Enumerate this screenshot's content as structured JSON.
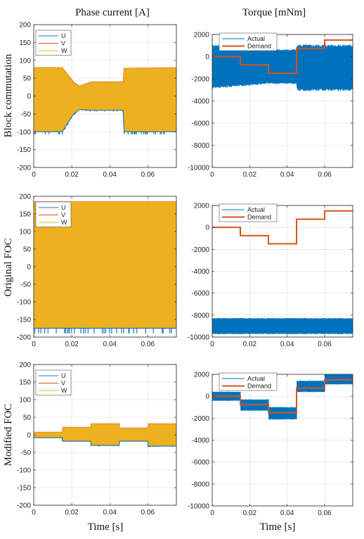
{
  "headers": {
    "left": "Phase current [A]",
    "right": "Torque [mNm]"
  },
  "row_labels": [
    "Block commutation",
    "Original FOC",
    "Modified FOC"
  ],
  "xlabel": "Time [s]",
  "colors": {
    "U": "#1f77b4",
    "V": "#d95319",
    "W": "#edb120",
    "actual": "#0072bd",
    "demand": "#d95319"
  },
  "chart_data": [
    {
      "type": "line",
      "row": 0,
      "column": "left",
      "xlim": [
        0,
        0.075
      ],
      "ylim": [
        -200,
        200
      ],
      "xticks": [
        0,
        0.02,
        0.04,
        0.06
      ],
      "xtick_labels": [
        "0",
        "0.02",
        "0.04",
        "0.06"
      ],
      "yticks": [
        200,
        150,
        100,
        50,
        0,
        -50,
        -100,
        -150,
        -200
      ],
      "legend": [
        "U",
        "V",
        "W"
      ],
      "envelope": {
        "x": [
          0,
          0.015,
          0.018,
          0.021,
          0.024,
          0.03,
          0.047,
          0.0475,
          0.075
        ],
        "upper": [
          80,
          80,
          60,
          40,
          28,
          40,
          40,
          78,
          80
        ],
        "lower": [
          -100,
          -100,
          -75,
          -50,
          -38,
          -40,
          -40,
          -100,
          -100
        ]
      }
    },
    {
      "type": "line",
      "row": 0,
      "column": "right",
      "xlim": [
        0,
        0.075
      ],
      "ylim": [
        -10000,
        2000
      ],
      "xticks": [
        0,
        0.02,
        0.04,
        0.06
      ],
      "xtick_labels": [
        "0",
        "0.02",
        "0.04",
        "0.06"
      ],
      "yticks": [
        2000,
        0,
        -2000,
        -4000,
        -6000,
        -8000,
        -10000
      ],
      "legend": [
        "Actual",
        "Demand"
      ],
      "series": [
        {
          "name": "Demand",
          "x": [
            0,
            0.015,
            0.015,
            0.03,
            0.03,
            0.045,
            0.045,
            0.06,
            0.06,
            0.075
          ],
          "y": [
            0,
            0,
            -750,
            -750,
            -1500,
            -1500,
            750,
            750,
            1500,
            1500
          ]
        }
      ],
      "actual_band": {
        "x": [
          0,
          0.015,
          0.03,
          0.045,
          0.0455,
          0.075
        ],
        "upper": [
          1000,
          1000,
          600,
          600,
          1000,
          1000
        ],
        "lower": [
          -2800,
          -2600,
          -2400,
          -2400,
          -3000,
          -3000
        ]
      }
    },
    {
      "type": "line",
      "row": 1,
      "column": "left",
      "xlim": [
        0,
        0.075
      ],
      "ylim": [
        -200,
        200
      ],
      "xticks": [
        0,
        0.02,
        0.04,
        0.06
      ],
      "xtick_labels": [
        "0",
        "0.02",
        "0.04",
        "0.06"
      ],
      "yticks": [
        200,
        150,
        100,
        50,
        0,
        -50,
        -100,
        -150,
        -200
      ],
      "legend": [
        "U",
        "V",
        "W"
      ],
      "envelope": {
        "x": [
          0,
          0.075
        ],
        "upper": [
          185,
          185
        ],
        "lower": [
          -175,
          -175
        ]
      }
    },
    {
      "type": "line",
      "row": 1,
      "column": "right",
      "xlim": [
        0,
        0.075
      ],
      "ylim": [
        -10000,
        2000
      ],
      "xticks": [
        0,
        0.02,
        0.04,
        0.06
      ],
      "xtick_labels": [
        "0",
        "0.02",
        "0.04",
        "0.06"
      ],
      "yticks": [
        2000,
        0,
        -2000,
        -4000,
        -6000,
        -8000,
        -10000
      ],
      "legend": [
        "Actual",
        "Demand"
      ],
      "series": [
        {
          "name": "Demand",
          "x": [
            0,
            0.015,
            0.015,
            0.03,
            0.03,
            0.045,
            0.045,
            0.06,
            0.06,
            0.075
          ],
          "y": [
            0,
            0,
            -750,
            -750,
            -1500,
            -1500,
            750,
            750,
            1500,
            1500
          ]
        }
      ],
      "actual_band": {
        "x": [
          0,
          0.075
        ],
        "upper": [
          -8300,
          -8300
        ],
        "lower": [
          -9700,
          -9700
        ]
      }
    },
    {
      "type": "line",
      "row": 2,
      "column": "left",
      "xlim": [
        0,
        0.075
      ],
      "ylim": [
        -200,
        200
      ],
      "xticks": [
        0,
        0.02,
        0.04,
        0.06
      ],
      "xtick_labels": [
        "0",
        "0.02",
        "0.04",
        "0.06"
      ],
      "yticks": [
        200,
        150,
        100,
        50,
        0,
        -50,
        -100,
        -150,
        -200
      ],
      "legend": [
        "U",
        "V",
        "W"
      ],
      "envelope": {
        "x": [
          0,
          0.015,
          0.0151,
          0.03,
          0.0301,
          0.045,
          0.0451,
          0.06,
          0.0601,
          0.075
        ],
        "upper": [
          8,
          8,
          22,
          22,
          32,
          32,
          20,
          20,
          32,
          32
        ],
        "lower": [
          -8,
          -8,
          -18,
          -18,
          -30,
          -30,
          -18,
          -18,
          -32,
          -32
        ]
      }
    },
    {
      "type": "line",
      "row": 2,
      "column": "right",
      "xlim": [
        0,
        0.075
      ],
      "ylim": [
        -10000,
        2000
      ],
      "xticks": [
        0,
        0.02,
        0.04,
        0.06
      ],
      "xtick_labels": [
        "0",
        "0.02",
        "0.04",
        "0.06"
      ],
      "yticks": [
        2000,
        0,
        -2000,
        -4000,
        -6000,
        -8000,
        -10000
      ],
      "legend": [
        "Actual",
        "Demand"
      ],
      "series": [
        {
          "name": "Demand",
          "x": [
            0,
            0.015,
            0.015,
            0.03,
            0.03,
            0.045,
            0.045,
            0.06,
            0.06,
            0.075
          ],
          "y": [
            0,
            0,
            -750,
            -750,
            -1500,
            -1500,
            750,
            750,
            1500,
            1500
          ]
        }
      ],
      "actual_band": {
        "x": [
          0,
          0.015,
          0.0151,
          0.03,
          0.0301,
          0.045,
          0.0451,
          0.06,
          0.0601,
          0.075
        ],
        "upper": [
          400,
          400,
          -300,
          -300,
          -1000,
          -1000,
          1400,
          1400,
          2000,
          2000
        ],
        "lower": [
          -400,
          -400,
          -1300,
          -1300,
          -2100,
          -2100,
          400,
          400,
          1100,
          1100
        ]
      }
    }
  ]
}
